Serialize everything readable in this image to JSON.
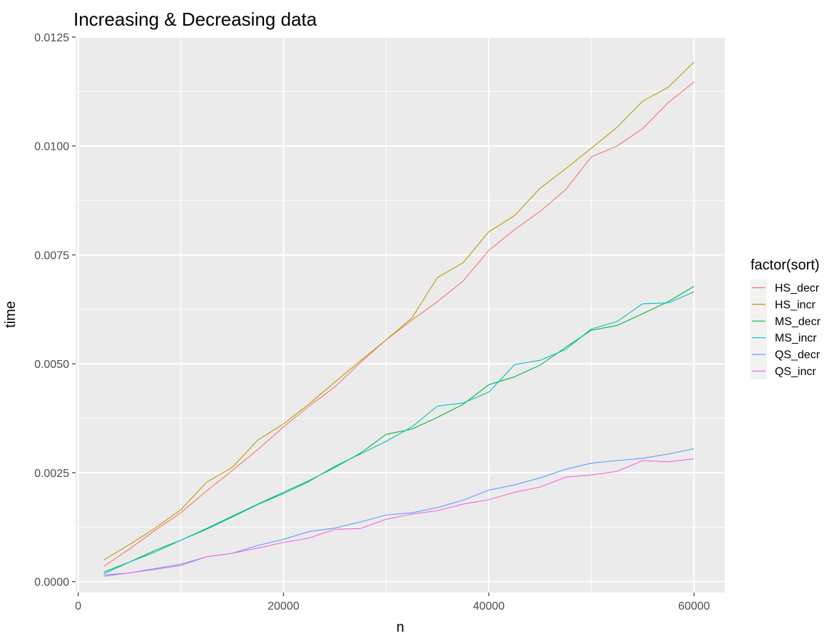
{
  "chart_data": {
    "type": "line",
    "title": "Increasing & Decreasing data",
    "xlabel": "n",
    "ylabel": "time",
    "xlim": [
      -250,
      63000
    ],
    "ylim": [
      -0.00025,
      0.0125
    ],
    "x_ticks": [
      0,
      20000,
      40000,
      60000
    ],
    "x_tick_labels": [
      "0",
      "20000",
      "40000",
      "60000"
    ],
    "y_ticks": [
      0,
      0.0025,
      0.005,
      0.0075,
      0.01,
      0.0125
    ],
    "y_tick_labels": [
      "0.0000",
      "0.0025",
      "0.0050",
      "0.0075",
      "0.0100",
      "0.0125"
    ],
    "grid": true,
    "background": "#EBEBEB",
    "legend_title": "factor(sort)",
    "legend_position": "right",
    "x": [
      2500,
      5000,
      7500,
      10000,
      12500,
      15000,
      17500,
      20000,
      22500,
      25000,
      27500,
      30000,
      32500,
      35000,
      37500,
      40000,
      42500,
      45000,
      47500,
      50000,
      52500,
      55000,
      57500,
      60000
    ],
    "series": [
      {
        "name": "HS_decr",
        "color": "#F8766D",
        "values": [
          0.00035,
          0.00075,
          0.00118,
          0.00158,
          0.00208,
          0.00255,
          0.00303,
          0.00355,
          0.00403,
          0.00447,
          0.00503,
          0.00555,
          0.006,
          0.00643,
          0.0069,
          0.0076,
          0.00808,
          0.0085,
          0.009,
          0.00975,
          0.01,
          0.0104,
          0.011,
          0.01147
        ]
      },
      {
        "name": "HS_incr",
        "color": "#B79F00",
        "values": [
          0.0005,
          0.00085,
          0.00123,
          0.00165,
          0.00228,
          0.00262,
          0.00325,
          0.00362,
          0.00408,
          0.00458,
          0.00507,
          0.00555,
          0.00605,
          0.00698,
          0.00732,
          0.00803,
          0.0084,
          0.00903,
          0.00948,
          0.00995,
          0.01043,
          0.01103,
          0.01135,
          0.01193
        ]
      },
      {
        "name": "MS_decr",
        "color": "#00BA38",
        "values": [
          0.00022,
          0.00045,
          0.00072,
          0.00095,
          0.00122,
          0.0015,
          0.00178,
          0.00205,
          0.00232,
          0.00262,
          0.00295,
          0.00338,
          0.0035,
          0.00377,
          0.00407,
          0.00452,
          0.0047,
          0.00497,
          0.00538,
          0.00577,
          0.00588,
          0.00615,
          0.00643,
          0.00678
        ]
      },
      {
        "name": "MS_incr",
        "color": "#00BFC4",
        "values": [
          0.00018,
          0.00045,
          0.00068,
          0.00095,
          0.0012,
          0.00148,
          0.00177,
          0.00202,
          0.0023,
          0.00265,
          0.00293,
          0.00322,
          0.00355,
          0.00403,
          0.0041,
          0.00435,
          0.00498,
          0.00508,
          0.00533,
          0.0058,
          0.00597,
          0.00638,
          0.0064,
          0.00665
        ]
      },
      {
        "name": "QS_decr",
        "color": "#619CFF",
        "values": [
          0.00015,
          0.0002,
          0.0003,
          0.0004,
          0.00057,
          0.00065,
          0.00083,
          0.00097,
          0.00115,
          0.00123,
          0.00137,
          0.00153,
          0.00158,
          0.0017,
          0.00187,
          0.0021,
          0.00222,
          0.00238,
          0.00258,
          0.00272,
          0.00278,
          0.00283,
          0.00293,
          0.00305
        ]
      },
      {
        "name": "QS_incr",
        "color": "#F564E3",
        "values": [
          0.00012,
          0.0002,
          0.00028,
          0.00037,
          0.00057,
          0.00065,
          0.00077,
          0.0009,
          0.001,
          0.0012,
          0.00122,
          0.00143,
          0.00155,
          0.00163,
          0.00178,
          0.00188,
          0.00205,
          0.00217,
          0.0024,
          0.00245,
          0.00253,
          0.00278,
          0.00275,
          0.00282
        ]
      }
    ]
  }
}
